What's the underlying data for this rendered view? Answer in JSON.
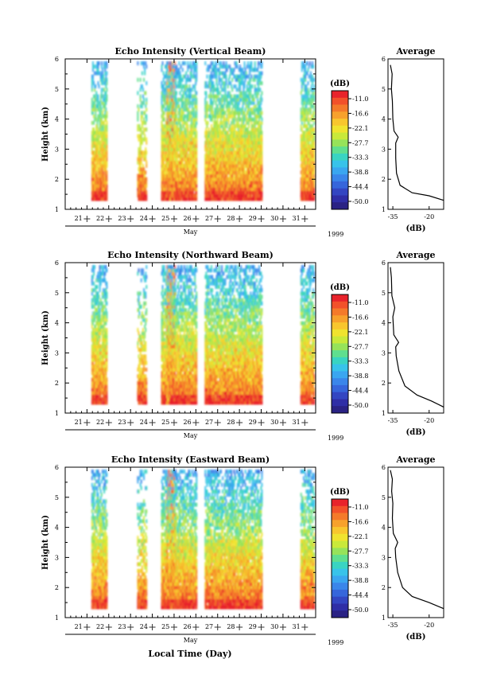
{
  "chart_data": {
    "type": "heatmap",
    "xlabel": "Local Time (Day)",
    "month_label": "May",
    "year_label": "1999",
    "day_ticks": [
      "21",
      "22",
      "23",
      "24",
      "25",
      "26",
      "27",
      "28",
      "29",
      "30",
      "31"
    ],
    "height_ticks": [
      "1",
      "2",
      "3",
      "4",
      "5",
      "6"
    ],
    "ylabel": "Height (km)",
    "colorbar": {
      "unit": "(dB)",
      "tick_labels": [
        "-11.0",
        "-16.6",
        "-22.1",
        "-27.7",
        "-33.3",
        "-38.8",
        "-44.4",
        "-50.0"
      ],
      "colors": [
        "#e8232b",
        "#f2512a",
        "#f47a2a",
        "#f7a12c",
        "#f8c62e",
        "#f0e32f",
        "#c9e93a",
        "#96e35a",
        "#5fdf8f",
        "#39d4c2",
        "#38c3ea",
        "#3aa6f0",
        "#3a86ea",
        "#3666db",
        "#3346c2",
        "#2f2ea6",
        "#2a2284"
      ]
    },
    "panels": [
      {
        "title": "Echo Intensity (Vertical Beam)",
        "ylabel": "Height (km)",
        "ylim": [
          1,
          6
        ],
        "xlim": [
          20.5,
          32.0
        ],
        "data_segments_day": [
          [
            21.7,
            22.4
          ],
          [
            23.8,
            24.2
          ],
          [
            24.9,
            26.5
          ],
          [
            26.9,
            29.5
          ],
          [
            31.3,
            31.9
          ]
        ],
        "average": {
          "title": "Average",
          "xlabel": "(dB)",
          "x_ticks": [
            "-35",
            "-20"
          ],
          "xlim": [
            -37,
            -14
          ],
          "ylim": [
            1,
            6
          ],
          "profile": [
            [
              1.3,
              -14
            ],
            [
              1.45,
              -20
            ],
            [
              1.55,
              -27
            ],
            [
              1.8,
              -32
            ],
            [
              2.2,
              -33.5
            ],
            [
              2.7,
              -33.8
            ],
            [
              3.2,
              -33.8
            ],
            [
              3.4,
              -32.8
            ],
            [
              3.6,
              -34.5
            ],
            [
              4.0,
              -35
            ],
            [
              4.6,
              -35.2
            ],
            [
              5.0,
              -35.6
            ],
            [
              5.5,
              -35.3
            ],
            [
              5.8,
              -36
            ]
          ]
        }
      },
      {
        "title": "Echo Intensity (Northward Beam)",
        "ylabel": "Height (km)",
        "ylim": [
          1,
          6
        ],
        "xlim": [
          20.5,
          32.0
        ],
        "data_segments_day": [
          [
            21.7,
            22.4
          ],
          [
            23.8,
            24.2
          ],
          [
            24.9,
            26.5
          ],
          [
            26.9,
            29.5
          ],
          [
            31.3,
            31.9
          ]
        ],
        "average": {
          "title": "Average",
          "xlabel": "(dB)",
          "x_ticks": [
            "-35",
            "-20"
          ],
          "xlim": [
            -37,
            -14
          ],
          "ylim": [
            1,
            6
          ],
          "profile": [
            [
              1.2,
              -14
            ],
            [
              1.4,
              -19
            ],
            [
              1.6,
              -25
            ],
            [
              1.9,
              -30
            ],
            [
              2.4,
              -32.5
            ],
            [
              2.9,
              -33.6
            ],
            [
              3.2,
              -33.8
            ],
            [
              3.35,
              -32.6
            ],
            [
              3.6,
              -34.6
            ],
            [
              4.2,
              -35
            ],
            [
              4.5,
              -34.2
            ],
            [
              4.9,
              -35.4
            ],
            [
              5.5,
              -35.6
            ],
            [
              5.85,
              -36
            ]
          ]
        }
      },
      {
        "title": "Echo Intensity (Eastward Beam)",
        "ylabel": "Height (km)",
        "ylim": [
          1,
          6
        ],
        "xlim": [
          20.5,
          32.0
        ],
        "data_segments_day": [
          [
            21.7,
            22.4
          ],
          [
            23.8,
            24.2
          ],
          [
            24.9,
            26.5
          ],
          [
            26.9,
            29.5
          ],
          [
            31.3,
            31.9
          ]
        ],
        "average": {
          "title": "Average",
          "xlabel": "(dB)",
          "x_ticks": [
            "-35",
            "-20"
          ],
          "xlim": [
            -37,
            -14
          ],
          "ylim": [
            1,
            6
          ],
          "profile": [
            [
              1.3,
              -14
            ],
            [
              1.5,
              -20
            ],
            [
              1.7,
              -27
            ],
            [
              2.0,
              -31
            ],
            [
              2.5,
              -33
            ],
            [
              3.0,
              -33.8
            ],
            [
              3.3,
              -34
            ],
            [
              3.5,
              -33
            ],
            [
              3.8,
              -34.8
            ],
            [
              4.3,
              -35.2
            ],
            [
              4.8,
              -35
            ],
            [
              5.2,
              -35.5
            ],
            [
              5.6,
              -35.2
            ],
            [
              5.9,
              -36
            ]
          ]
        }
      }
    ]
  }
}
